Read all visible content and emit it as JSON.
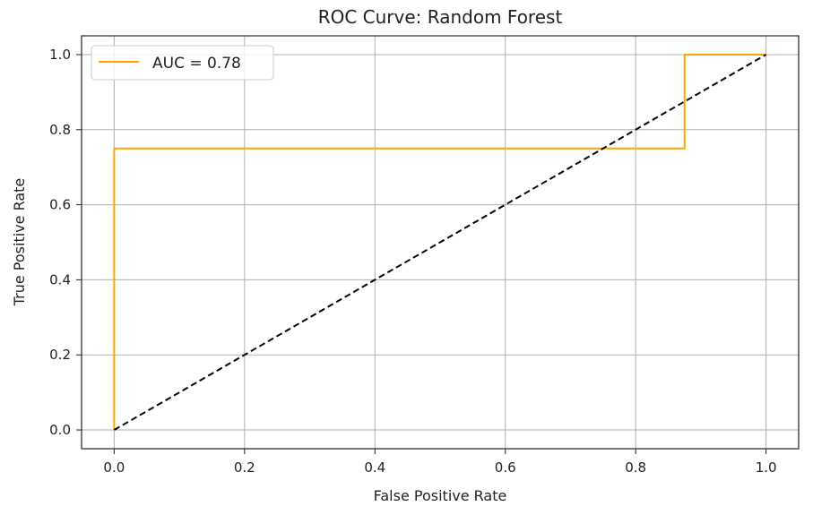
{
  "chart_data": {
    "type": "line",
    "title": "ROC Curve: Random Forest",
    "xlabel": "False Positive Rate",
    "ylabel": "True Positive Rate",
    "xlim": [
      -0.05,
      1.05
    ],
    "ylim": [
      -0.05,
      1.05
    ],
    "xticks": [
      "0.0",
      "0.2",
      "0.4",
      "0.6",
      "0.8",
      "1.0"
    ],
    "yticks": [
      "0.0",
      "0.2",
      "0.4",
      "0.6",
      "0.8",
      "1.0"
    ],
    "grid": true,
    "legend_position": "top-left",
    "series": [
      {
        "name": "AUC = 0.78",
        "color": "#ffa500",
        "style": "solid",
        "x": [
          0,
          0,
          0.875,
          0.875,
          1
        ],
        "y": [
          0,
          0.75,
          0.75,
          1,
          1
        ]
      },
      {
        "color": "#000000",
        "style": "dashed",
        "x": [
          0,
          1
        ],
        "y": [
          0,
          1
        ]
      }
    ]
  }
}
